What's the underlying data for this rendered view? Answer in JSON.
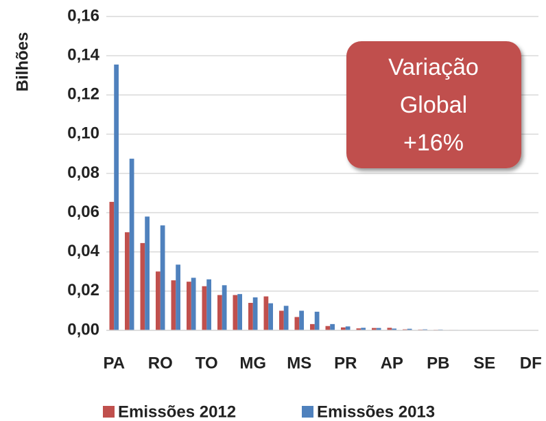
{
  "chart_data": {
    "type": "bar",
    "y_label": "Bilhões",
    "categories": [
      "PA",
      null,
      null,
      "RO",
      null,
      null,
      "TO",
      null,
      null,
      "MG",
      null,
      null,
      "MS",
      null,
      null,
      "PR",
      null,
      null,
      "AP",
      null,
      null,
      "PB",
      null,
      null,
      "SE",
      null,
      null,
      "DF"
    ],
    "series": [
      {
        "name": "Emissões 2012",
        "color": "#c0504d",
        "values": [
          0.0655,
          0.05,
          0.0445,
          0.03,
          0.0255,
          0.0248,
          0.0225,
          0.018,
          0.018,
          0.014,
          0.0173,
          0.01,
          0.0068,
          0.0032,
          0.0022,
          0.0015,
          0.001,
          0.0012,
          0.0013,
          0.0005,
          0.0004,
          0.0003,
          0.0002,
          0.0001,
          0.0001,
          0,
          0,
          0
        ]
      },
      {
        "name": "Emissões 2013",
        "color": "#4f81bd",
        "values": [
          0.1355,
          0.0875,
          0.058,
          0.0535,
          0.0335,
          0.0268,
          0.026,
          0.023,
          0.0185,
          0.0168,
          0.0138,
          0.0125,
          0.01,
          0.0095,
          0.0032,
          0.002,
          0.0013,
          0.0012,
          0.0009,
          0.0008,
          0.0005,
          0.0004,
          0.0002,
          0.0001,
          0.0001,
          0,
          0,
          0
        ]
      }
    ],
    "ylim": [
      0,
      0.16
    ],
    "yticks": [
      {
        "value": 0,
        "label": "0,00"
      },
      {
        "value": 0.02,
        "label": "0,02"
      },
      {
        "value": 0.04,
        "label": "0,04"
      },
      {
        "value": 0.06,
        "label": "0,06"
      },
      {
        "value": 0.08,
        "label": "0,08"
      },
      {
        "value": 0.1,
        "label": "0,10"
      },
      {
        "value": 0.12,
        "label": "0,12"
      },
      {
        "value": 0.14,
        "label": "0,14"
      },
      {
        "value": 0.16,
        "label": "0,16"
      }
    ],
    "grid": true,
    "legend": "bottom",
    "annotation": {
      "lines": [
        "Variação",
        "Global",
        "+16%"
      ],
      "color": "#c0504d"
    }
  }
}
